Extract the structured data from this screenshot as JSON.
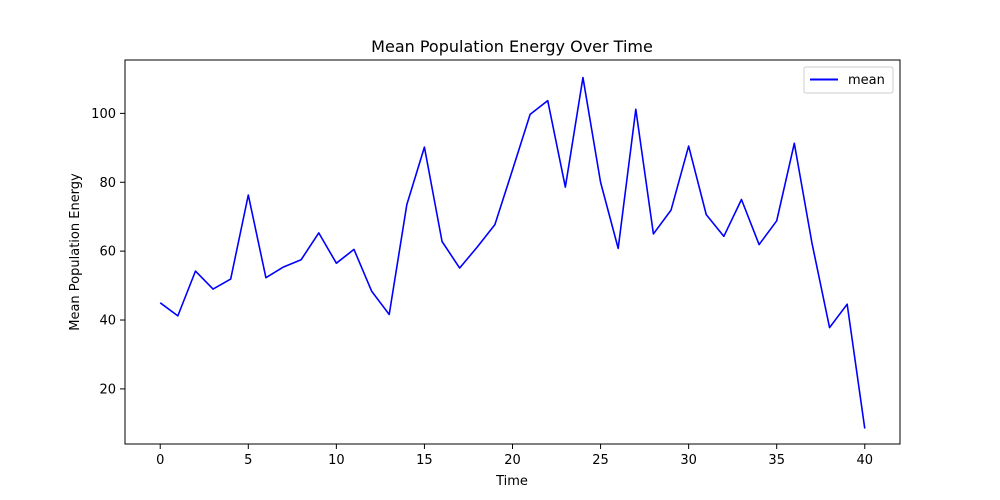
{
  "chart_data": {
    "type": "line",
    "title": "Mean Population Energy Over Time",
    "xlabel": "Time",
    "ylabel": "Mean Population Energy",
    "xlim": [
      -2,
      42
    ],
    "ylim": [
      4,
      115.5
    ],
    "x_ticks": [
      0,
      5,
      10,
      15,
      20,
      25,
      30,
      35,
      40
    ],
    "y_ticks": [
      20,
      40,
      60,
      80,
      100
    ],
    "grid": false,
    "legend_position": "top-right",
    "series": [
      {
        "name": "mean",
        "color": "#0000ff",
        "x": [
          0,
          1,
          2,
          3,
          4,
          5,
          6,
          7,
          8,
          9,
          10,
          11,
          12,
          13,
          14,
          15,
          16,
          17,
          18,
          19,
          20,
          21,
          22,
          23,
          24,
          25,
          26,
          27,
          28,
          29,
          30,
          31,
          32,
          33,
          34,
          35,
          36,
          37,
          38,
          39,
          40
        ],
        "y": [
          45,
          41.2,
          54.2,
          49,
          51.9,
          76.3,
          52.3,
          55.4,
          57.5,
          65.3,
          56.5,
          60.5,
          48.4,
          41.6,
          73.5,
          90.2,
          62.8,
          55.1,
          61.2,
          67.7,
          83.6,
          99.7,
          103.7,
          78.6,
          110.4,
          80,
          60.8,
          101.2,
          65,
          71.9,
          90.5,
          70.6,
          64.3,
          75,
          61.9,
          68.8,
          91.3,
          62.4,
          37.8,
          44.6,
          8.5
        ]
      }
    ]
  }
}
